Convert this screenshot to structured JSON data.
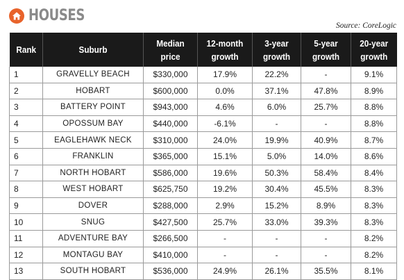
{
  "title": "HOUSES",
  "source": "Source: CoreLogic",
  "colors": {
    "accent": "#e8632b",
    "header_bg": "#1a1a1a",
    "title_gray": "#8a8a8a"
  },
  "table": {
    "headers": [
      {
        "lines": [
          "Rank"
        ]
      },
      {
        "lines": [
          "Suburb"
        ]
      },
      {
        "lines": [
          "Median",
          "price"
        ]
      },
      {
        "lines": [
          "12-month",
          "growth"
        ]
      },
      {
        "lines": [
          "3-year",
          "growth"
        ]
      },
      {
        "lines": [
          "5-year",
          "growth"
        ]
      },
      {
        "lines": [
          "20-year",
          "growth"
        ]
      }
    ],
    "rows": [
      [
        "1",
        "GRAVELLY BEACH",
        "$330,000",
        "17.9%",
        "22.2%",
        "-",
        "9.1%"
      ],
      [
        "2",
        "HOBART",
        "$600,000",
        "0.0%",
        "37.1%",
        "47.8%",
        "8.9%"
      ],
      [
        "3",
        "BATTERY POINT",
        "$943,000",
        "4.6%",
        "6.0%",
        "25.7%",
        "8.8%"
      ],
      [
        "4",
        "OPOSSUM BAY",
        "$440,000",
        "-6.1%",
        "-",
        "-",
        "8.8%"
      ],
      [
        "5",
        "EAGLEHAWK NECK",
        "$310,000",
        "24.0%",
        "19.9%",
        "40.9%",
        "8.7%"
      ],
      [
        "6",
        "FRANKLIN",
        "$365,000",
        "15.1%",
        "5.0%",
        "14.0%",
        "8.6%"
      ],
      [
        "7",
        "NORTH HOBART",
        "$586,000",
        "19.6%",
        "50.3%",
        "58.4%",
        "8.4%"
      ],
      [
        "8",
        "WEST HOBART",
        "$625,750",
        "19.2%",
        "30.4%",
        "45.5%",
        "8.3%"
      ],
      [
        "9",
        "DOVER",
        "$288,000",
        "2.9%",
        "15.2%",
        "8.9%",
        "8.3%"
      ],
      [
        "10",
        "SNUG",
        "$427,500",
        "25.7%",
        "33.0%",
        "39.3%",
        "8.3%"
      ],
      [
        "11",
        "ADVENTURE BAY",
        "$266,500",
        "-",
        "-",
        "-",
        "8.2%"
      ],
      [
        "12",
        "MONTAGU BAY",
        "$410,000",
        "-",
        "-",
        "-",
        "8.2%"
      ],
      [
        "13",
        "SOUTH HOBART",
        "$536,000",
        "24.9%",
        "26.1%",
        "35.5%",
        "8.1%"
      ]
    ]
  }
}
